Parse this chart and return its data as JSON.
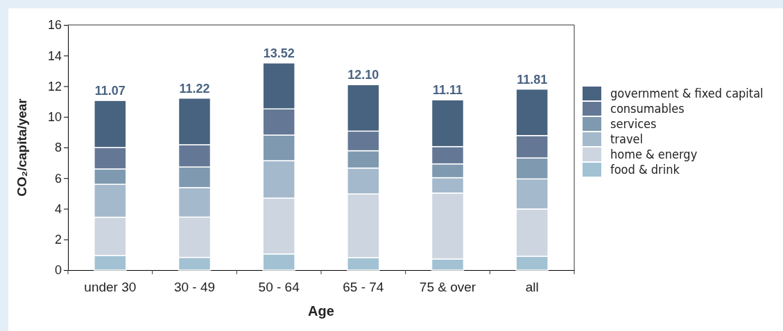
{
  "chart_data": {
    "type": "bar",
    "stacked": true,
    "xlabel": "Age",
    "ylabel": "CO₂/capita/year",
    "categories": [
      "under 30",
      "30 - 49",
      "50 - 64",
      "65 - 74",
      "75 & over",
      "all"
    ],
    "series": [
      {
        "name": "food & drink",
        "color": "#a2c2d3",
        "values": [
          0.95,
          0.83,
          1.05,
          0.81,
          0.72,
          0.9
        ]
      },
      {
        "name": "home & energy",
        "color": "#cdd5e0",
        "values": [
          2.5,
          2.63,
          3.65,
          4.16,
          4.31,
          3.09
        ]
      },
      {
        "name": "travel",
        "color": "#a5b9cc",
        "values": [
          2.15,
          1.92,
          2.44,
          1.69,
          1.0,
          1.96
        ]
      },
      {
        "name": "services",
        "color": "#7f9ab0",
        "values": [
          1.0,
          1.35,
          1.67,
          1.13,
          0.9,
          1.37
        ]
      },
      {
        "name": "consumables",
        "color": "#647896",
        "values": [
          1.4,
          1.45,
          1.71,
          1.28,
          1.13,
          1.46
        ]
      },
      {
        "name": "government & fixed capital",
        "color": "#48637f",
        "values": [
          3.07,
          3.04,
          3.0,
          3.03,
          3.05,
          3.03
        ]
      }
    ],
    "totals": [
      "11.07",
      "11.22",
      "13.52",
      "12.10",
      "11.11",
      "11.81"
    ],
    "ylim": [
      0,
      16
    ],
    "yticks": [
      0,
      2,
      4,
      6,
      8,
      10,
      12,
      14,
      16
    ],
    "grid": false,
    "legend": "right"
  }
}
